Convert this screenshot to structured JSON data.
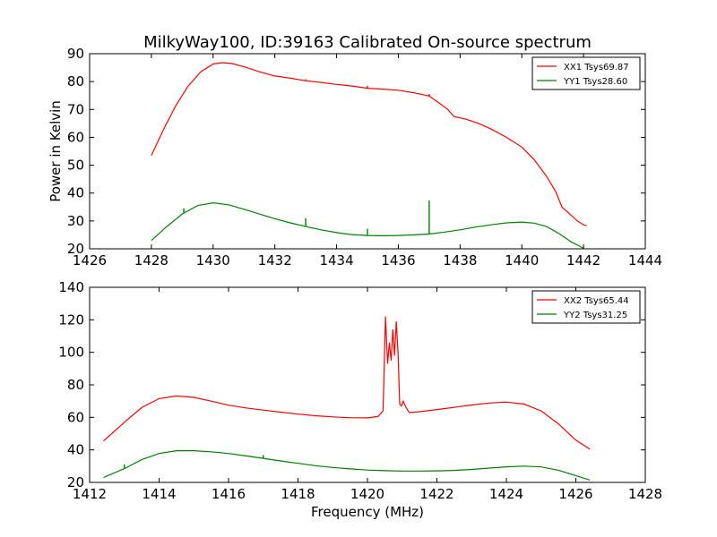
{
  "chart_data": [
    {
      "type": "line",
      "title": "MilkyWay100, ID:39163 Calibrated On-source spectrum",
      "xlabel": "",
      "ylabel": "Power in Kelvin",
      "xlim": [
        1426,
        1444
      ],
      "ylim": [
        20,
        90
      ],
      "xticks": [
        1426,
        1428,
        1430,
        1432,
        1434,
        1436,
        1438,
        1440,
        1442,
        1444
      ],
      "yticks": [
        20,
        30,
        40,
        50,
        60,
        70,
        80,
        90
      ],
      "xtick_labels": [
        "1426",
        "1428",
        "1430",
        "1432",
        "1434",
        "1436",
        "1438",
        "1440",
        "1442",
        "1444"
      ],
      "ytick_labels": [
        "20",
        "30",
        "40",
        "50",
        "60",
        "70",
        "80",
        "90"
      ],
      "grid": false,
      "legend_position": "top-right",
      "series": [
        {
          "name": "XX1 Tsys69.87",
          "color": "#ff0000",
          "x": [
            1428.0,
            1428.4,
            1428.8,
            1429.2,
            1429.6,
            1430.0,
            1430.3,
            1430.6,
            1431.0,
            1431.5,
            1432.0,
            1432.5,
            1433.0,
            1433.5,
            1434.0,
            1434.5,
            1435.0,
            1435.5,
            1436.0,
            1436.5,
            1437.0,
            1437.3,
            1437.6,
            1437.8,
            1438.2,
            1438.6,
            1439.0,
            1439.5,
            1440.0,
            1440.4,
            1440.8,
            1441.1,
            1441.3,
            1441.6,
            1441.8,
            1442.0,
            1442.1
          ],
          "y": [
            53.5,
            63.0,
            71.5,
            78.5,
            83.5,
            86.3,
            86.8,
            86.5,
            85.3,
            83.5,
            82.0,
            81.2,
            80.3,
            79.7,
            79.0,
            78.4,
            77.6,
            77.3,
            76.9,
            76.0,
            74.8,
            72.5,
            70.0,
            67.5,
            66.5,
            65.0,
            63.0,
            60.0,
            56.5,
            52.0,
            46.0,
            40.5,
            35.0,
            32.0,
            30.0,
            28.6,
            28.3
          ],
          "spikes": [
            {
              "x": 1433.0,
              "y": 80.8
            },
            {
              "x": 1435.0,
              "y": 78.5
            },
            {
              "x": 1437.0,
              "y": 75.5
            }
          ]
        },
        {
          "name": "YY1 Tsys28.60",
          "color": "#008000",
          "x": [
            1428.0,
            1428.5,
            1429.0,
            1429.5,
            1430.0,
            1430.5,
            1431.0,
            1431.5,
            1432.0,
            1432.5,
            1433.0,
            1433.5,
            1434.0,
            1434.5,
            1435.0,
            1435.5,
            1436.0,
            1436.5,
            1437.0,
            1437.5,
            1438.0,
            1438.5,
            1439.0,
            1439.5,
            1440.0,
            1440.4,
            1440.8,
            1441.2,
            1441.6,
            1442.0
          ],
          "y": [
            23.0,
            28.0,
            32.5,
            35.5,
            36.5,
            35.8,
            34.2,
            32.5,
            30.8,
            29.3,
            28.0,
            26.8,
            25.8,
            25.1,
            24.8,
            24.7,
            24.8,
            25.0,
            25.3,
            26.0,
            26.8,
            27.8,
            28.6,
            29.3,
            29.6,
            29.2,
            28.0,
            25.5,
            22.5,
            20.2
          ],
          "spikes": [
            {
              "x": 1429.05,
              "y": 34.5
            },
            {
              "x": 1433.0,
              "y": 31.0
            },
            {
              "x": 1435.0,
              "y": 27.2
            },
            {
              "x": 1437.0,
              "y": 37.3
            },
            {
              "x": 1438.7,
              "y": 28.2
            }
          ]
        }
      ]
    },
    {
      "type": "line",
      "title": "",
      "xlabel": "Frequency (MHz)",
      "ylabel": "",
      "xlim": [
        1412,
        1428
      ],
      "ylim": [
        20,
        140
      ],
      "xticks": [
        1412,
        1414,
        1416,
        1418,
        1420,
        1422,
        1424,
        1426,
        1428
      ],
      "yticks": [
        20,
        40,
        60,
        80,
        100,
        120,
        140
      ],
      "xtick_labels": [
        "1412",
        "1414",
        "1416",
        "1418",
        "1420",
        "1422",
        "1424",
        "1426",
        "1428"
      ],
      "ytick_labels": [
        "20",
        "40",
        "60",
        "80",
        "100",
        "120",
        "140"
      ],
      "grid": false,
      "legend_position": "top-right",
      "series": [
        {
          "name": "XX2 Tsys65.44",
          "color": "#ff0000",
          "x": [
            1412.4,
            1413.0,
            1413.5,
            1414.0,
            1414.5,
            1415.0,
            1415.5,
            1416.0,
            1416.5,
            1417.0,
            1417.5,
            1418.0,
            1418.5,
            1419.0,
            1419.5,
            1420.0,
            1420.3,
            1420.45,
            1420.52,
            1420.58,
            1420.63,
            1420.68,
            1420.73,
            1420.78,
            1420.83,
            1420.88,
            1420.93,
            1420.98,
            1421.03,
            1421.1,
            1421.2,
            1421.5,
            1422.0,
            1422.5,
            1423.0,
            1423.5,
            1424.0,
            1424.5,
            1425.0,
            1425.5,
            1426.0,
            1426.4
          ],
          "y": [
            45.5,
            57.0,
            66.0,
            71.5,
            73.2,
            72.3,
            70.0,
            67.5,
            65.8,
            64.5,
            63.2,
            62.0,
            61.0,
            60.3,
            59.8,
            59.7,
            60.5,
            64.0,
            122.0,
            93.0,
            106.0,
            95.0,
            114.0,
            98.0,
            119.0,
            100.0,
            68.0,
            67.0,
            70.0,
            66.5,
            63.0,
            63.5,
            64.8,
            66.2,
            67.6,
            68.8,
            69.4,
            68.2,
            64.0,
            56.0,
            46.0,
            40.5
          ],
          "spikes": []
        },
        {
          "name": "YY2 Tsys31.25",
          "color": "#008000",
          "x": [
            1412.4,
            1413.0,
            1413.5,
            1414.0,
            1414.5,
            1415.0,
            1415.5,
            1416.0,
            1416.5,
            1417.0,
            1417.5,
            1418.0,
            1418.5,
            1419.0,
            1419.5,
            1420.0,
            1420.5,
            1421.0,
            1421.5,
            1422.0,
            1422.5,
            1423.0,
            1423.5,
            1424.0,
            1424.5,
            1425.0,
            1425.5,
            1426.0,
            1426.4
          ],
          "y": [
            23.0,
            28.5,
            34.0,
            37.8,
            39.5,
            39.5,
            38.8,
            37.8,
            36.3,
            34.8,
            33.2,
            31.7,
            30.3,
            29.2,
            28.3,
            27.6,
            27.2,
            27.0,
            27.0,
            27.1,
            27.4,
            28.0,
            28.8,
            29.6,
            30.0,
            29.5,
            27.5,
            24.2,
            21.5
          ],
          "spikes": [
            {
              "x": 1413.0,
              "y": 31.0
            },
            {
              "x": 1417.0,
              "y": 36.8
            }
          ]
        }
      ]
    }
  ]
}
